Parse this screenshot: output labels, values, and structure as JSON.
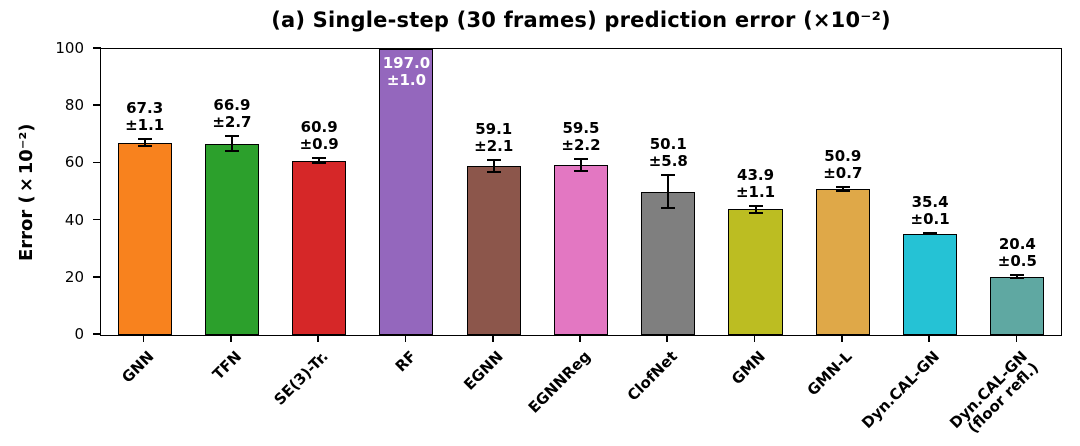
{
  "chart_data": {
    "type": "bar",
    "title": "(a) Single-step (30 frames) prediction error (×10⁻²)",
    "ylabel": "Error (×10⁻²)",
    "ylim": [
      0,
      100
    ],
    "yticks": [
      0,
      20,
      40,
      60,
      80,
      100
    ],
    "categories": [
      "GNN",
      "TFN",
      "SE(3)-Tr.",
      "RF",
      "EGNN",
      "EGNNReg",
      "ClofNet",
      "GMN",
      "GMN-L",
      "Dyn.CAL-GN",
      "Dyn.CAL-GN\n(floor refl.)"
    ],
    "values": [
      67.3,
      66.9,
      60.9,
      197.0,
      59.1,
      59.5,
      50.1,
      43.9,
      50.9,
      35.4,
      20.4
    ],
    "errors": [
      1.1,
      2.7,
      0.9,
      1.0,
      2.1,
      2.2,
      5.8,
      1.1,
      0.7,
      0.1,
      0.5
    ],
    "bar_colors": [
      "#f8821e",
      "#2ca02c",
      "#d62728",
      "#9467bd",
      "#8c564b",
      "#e377c2",
      "#7f7f7f",
      "#bcbd22",
      "#dfa848",
      "#25c2d5",
      "#5fa8a2"
    ],
    "value_label_clipped_color": "#ffffff",
    "grid": false,
    "legend": "none"
  }
}
